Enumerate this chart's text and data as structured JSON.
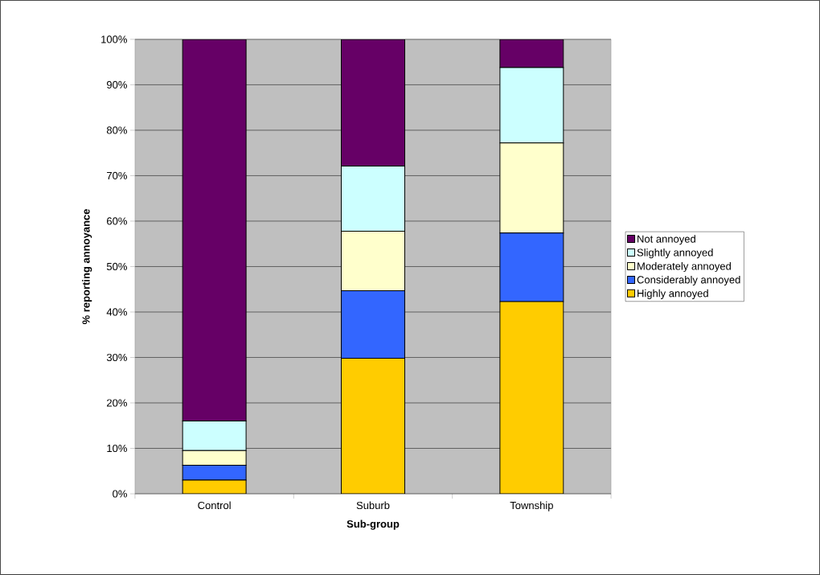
{
  "chart_data": {
    "type": "bar",
    "stacked": true,
    "xlabel": "Sub-group",
    "ylabel": "% reporting annoyance",
    "categories": [
      "Control",
      "Suburb",
      "Township"
    ],
    "series": [
      {
        "name": "Highly annoyed",
        "color": "#ffcc00",
        "values": [
          3.0,
          29.8,
          42.3
        ]
      },
      {
        "name": "Considerably annoyed",
        "color": "#3366ff",
        "values": [
          3.3,
          14.9,
          15.1
        ]
      },
      {
        "name": "Moderately annoyed",
        "color": "#ffffcc",
        "values": [
          3.2,
          13.1,
          19.8
        ]
      },
      {
        "name": "Slightly annoyed",
        "color": "#ccffff",
        "values": [
          6.5,
          14.3,
          16.6
        ]
      },
      {
        "name": "Not annoyed",
        "color": "#660066",
        "values": [
          84.0,
          27.9,
          6.2
        ]
      }
    ],
    "ylim": [
      0,
      100
    ],
    "yticks": [
      {
        "value": 0,
        "label": "0%"
      },
      {
        "value": 10,
        "label": "10%"
      },
      {
        "value": 20,
        "label": "20%"
      },
      {
        "value": 30,
        "label": "30%"
      },
      {
        "value": 40,
        "label": "40%"
      },
      {
        "value": 50,
        "label": "50%"
      },
      {
        "value": 60,
        "label": "60%"
      },
      {
        "value": 70,
        "label": "70%"
      },
      {
        "value": 80,
        "label": "80%"
      },
      {
        "value": 90,
        "label": "90%"
      },
      {
        "value": 100,
        "label": "100%"
      }
    ],
    "grid": "y",
    "legend": "right"
  }
}
